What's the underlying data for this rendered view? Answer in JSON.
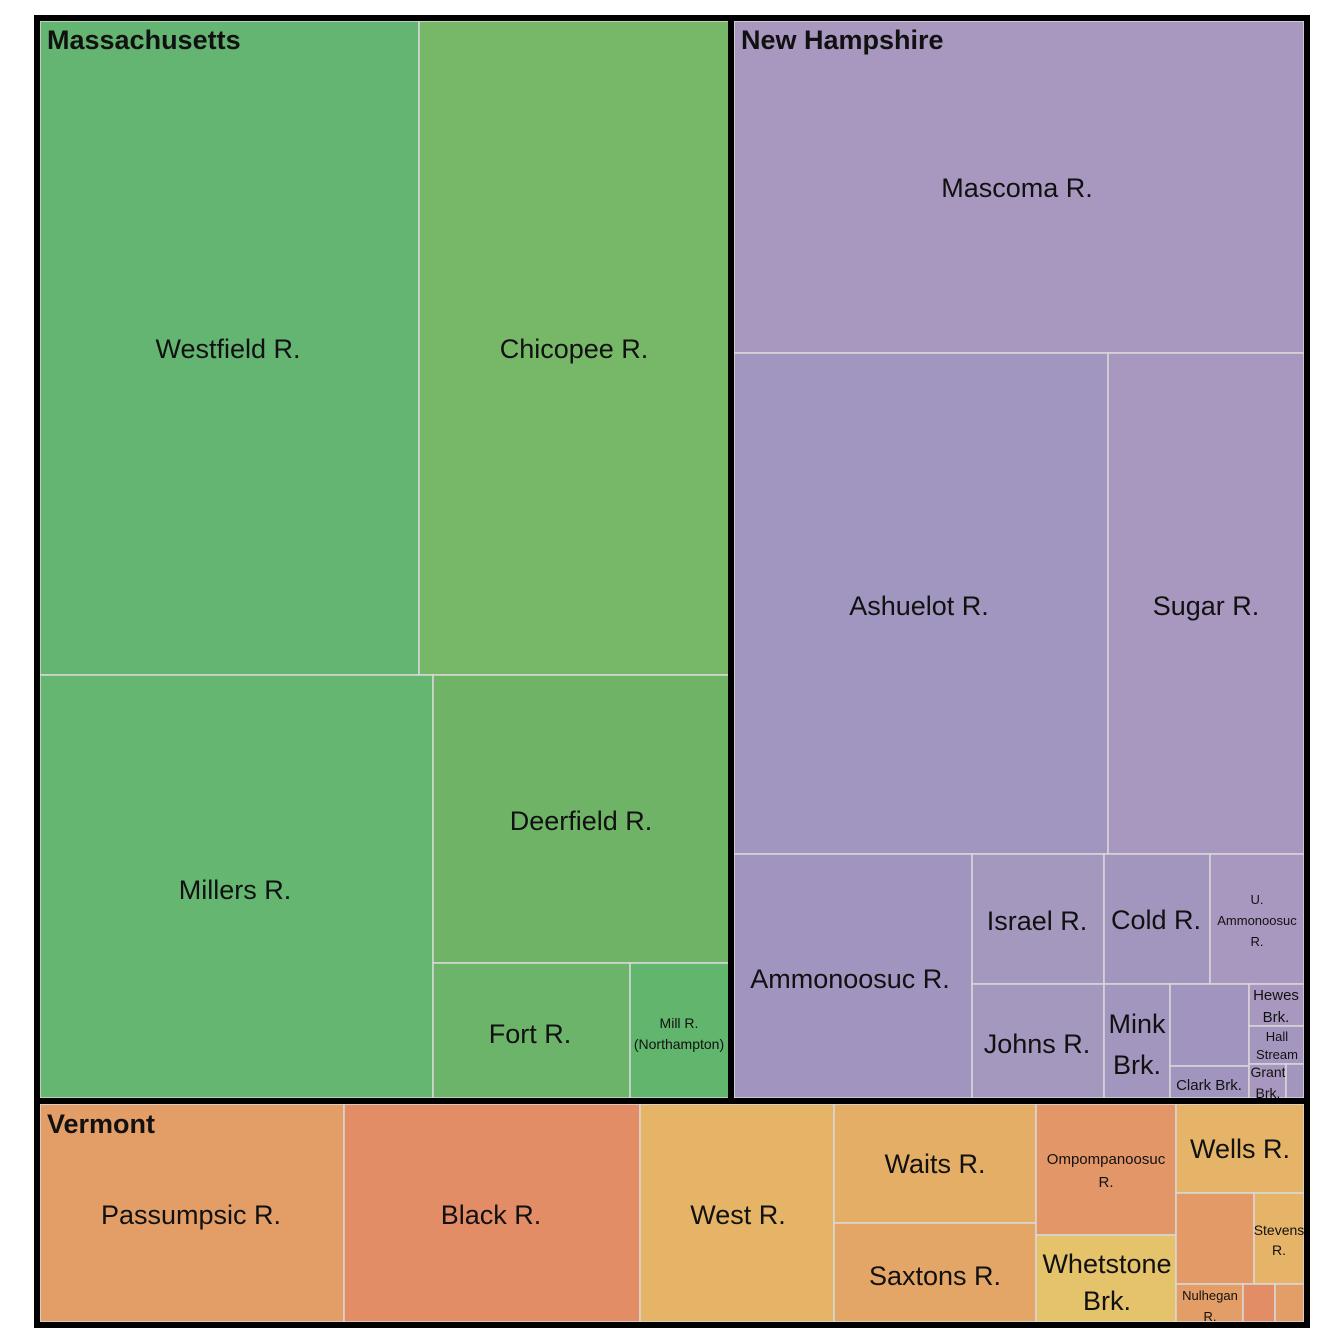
{
  "chart_data": {
    "type": "treemap",
    "title": "",
    "groups": [
      {
        "name": "Massachusetts",
        "color": "#6ab46c",
        "items": [
          {
            "label": "Westfield R.",
            "color": "#64b572"
          },
          {
            "label": "Chicopee R.",
            "color": "#76b768"
          },
          {
            "label": "Millers R.",
            "color": "#64b670"
          },
          {
            "label": "Deerfield R.",
            "color": "#6fb466"
          },
          {
            "label": "Fort R.",
            "color": "#6bb46a"
          },
          {
            "label": "Mill R. (Northampton)",
            "color": "#61b56c"
          }
        ]
      },
      {
        "name": "New Hampshire",
        "color": "#a597bf",
        "items": [
          {
            "label": "Mascoma R.",
            "color": "#a898bf"
          },
          {
            "label": "Ashuelot R.",
            "color": "#a196bf"
          },
          {
            "label": "Sugar R.",
            "color": "#a898bf"
          },
          {
            "label": "Ammonoosuc R.",
            "color": "#a195bf"
          },
          {
            "label": "Israel R.",
            "color": "#a598bf"
          },
          {
            "label": "Cold R.",
            "color": "#a296bf"
          },
          {
            "label": "U. Ammonoosuc R.",
            "color": "#a898bf"
          },
          {
            "label": "Johns R.",
            "color": "#a598bf"
          },
          {
            "label": "Mink Brk.",
            "color": "#a296bf"
          },
          {
            "label": "",
            "color": "#a195bf"
          },
          {
            "label": "Hewes Brk.",
            "color": "#a898bf"
          },
          {
            "label": "Hall Stream",
            "color": "#a596bf"
          },
          {
            "label": "Clark Brk.",
            "color": "#a195bf"
          },
          {
            "label": "Grant Brk.",
            "color": "#a898bf"
          },
          {
            "label": "",
            "color": "#a296bf"
          }
        ]
      },
      {
        "name": "Vermont",
        "color": "#e3a062",
        "items": [
          {
            "label": "Passumpsic R.",
            "color": "#e39d67"
          },
          {
            "label": "Black R.",
            "color": "#e38d67"
          },
          {
            "label": "West R.",
            "color": "#e5b467"
          },
          {
            "label": "Waits R.",
            "color": "#e5ae66"
          },
          {
            "label": "Saxtons R.",
            "color": "#e3a666"
          },
          {
            "label": "Ompompanoosuc R.",
            "color": "#e39667"
          },
          {
            "label": "Whetstone Brk.",
            "color": "#e5c36a"
          },
          {
            "label": "Wells R.",
            "color": "#e5b468"
          },
          {
            "label": "",
            "color": "#e39a66"
          },
          {
            "label": "Stevens R.",
            "color": "#e5b468"
          },
          {
            "label": "Nulhegan R.",
            "color": "#e39d67"
          },
          {
            "label": "",
            "color": "#e38d67"
          },
          {
            "label": "",
            "color": "#e39d67"
          }
        ]
      }
    ]
  }
}
